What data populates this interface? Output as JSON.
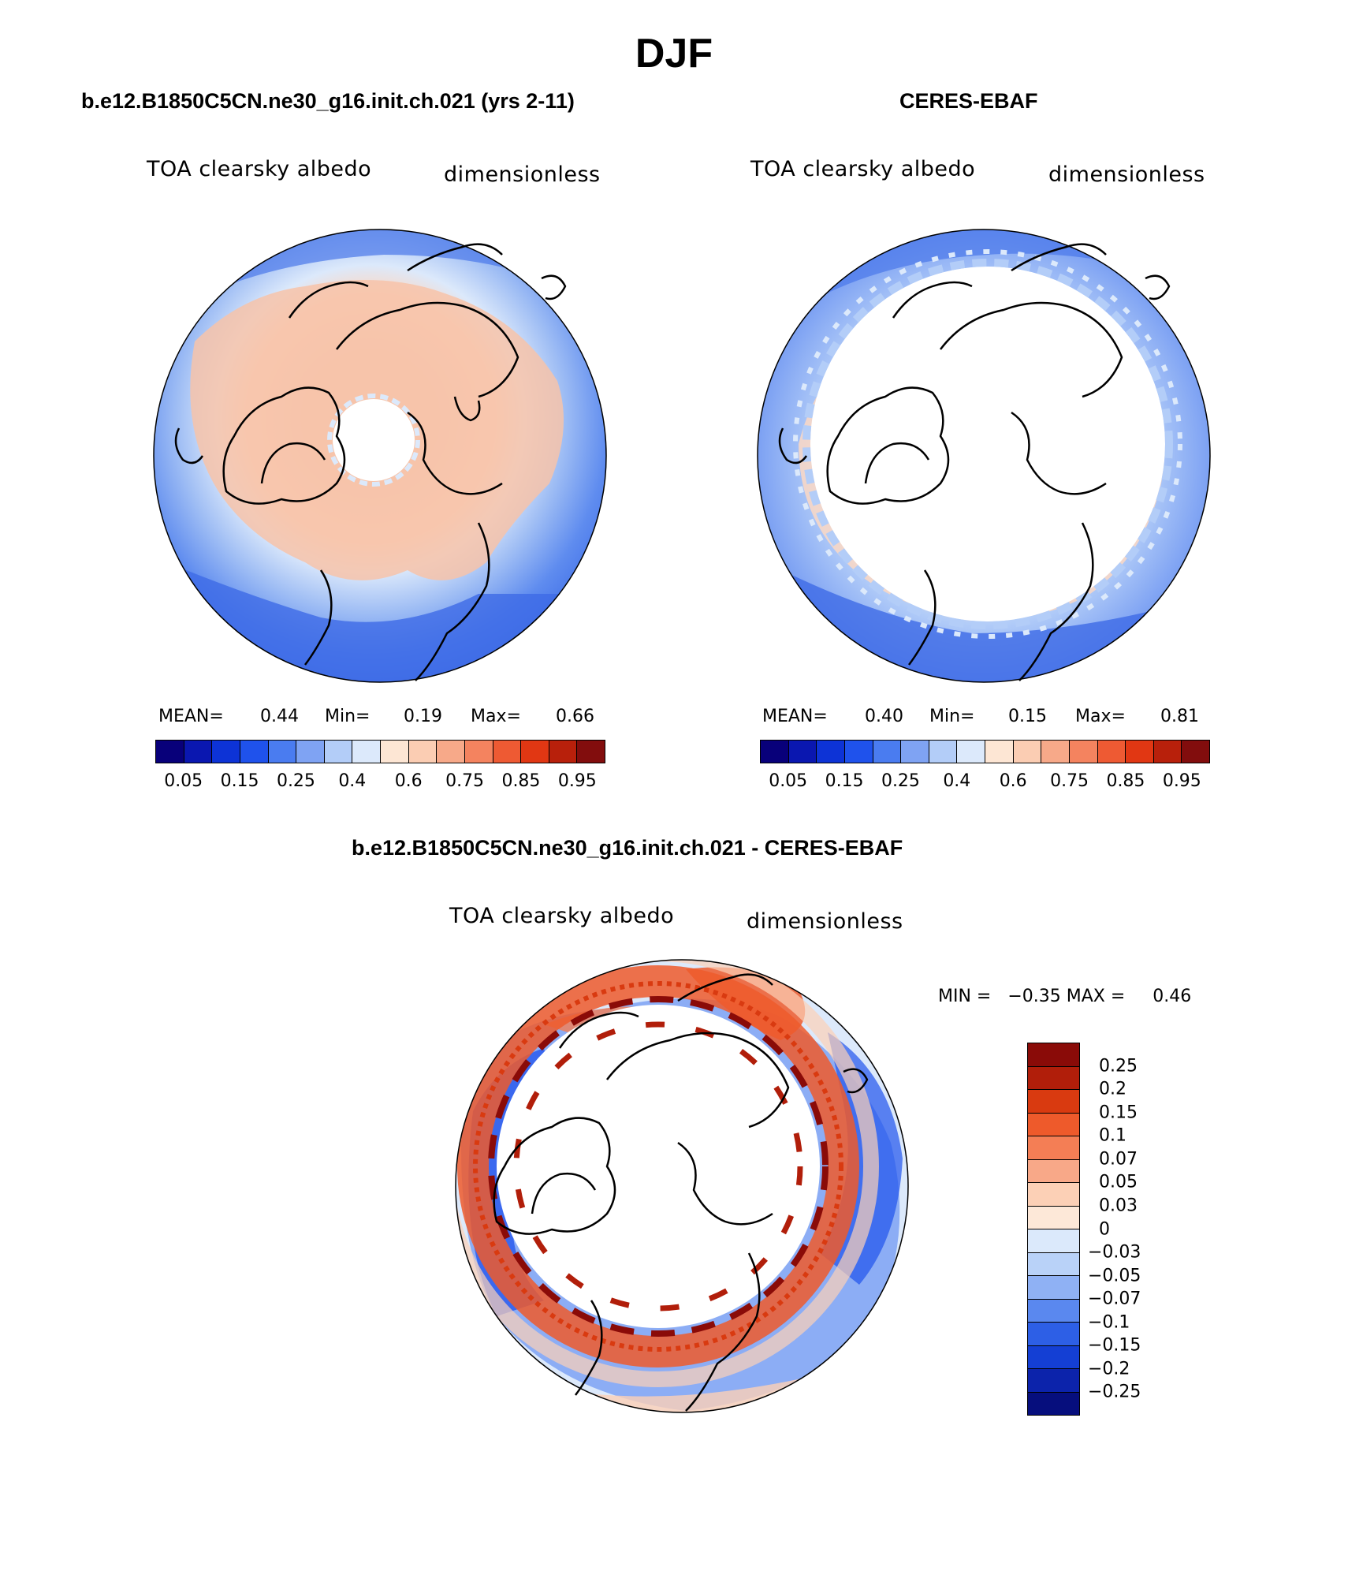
{
  "title": "DJF",
  "panels": {
    "model": {
      "title": "b.e12.B1850C5CN.ne30_g16.init.ch.021 (yrs 2-11)",
      "variable": "TOA clearsky albedo",
      "units": "dimensionless",
      "mean_label": "MEAN=",
      "mean": "0.44",
      "min_label": "Min=",
      "min": "0.19",
      "max_label": "Max=",
      "max": "0.66"
    },
    "obs": {
      "title": "CERES-EBAF",
      "variable": "TOA clearsky albedo",
      "units": "dimensionless",
      "mean_label": "MEAN=",
      "mean": "0.40",
      "min_label": "Min=",
      "min": "0.15",
      "max_label": "Max=",
      "max": "0.81"
    },
    "diff": {
      "title": "b.e12.B1850C5CN.ne30_g16.init.ch.021 - CERES-EBAF",
      "variable": "TOA clearsky albedo",
      "units": "dimensionless",
      "minmax_text": "MIN =   −0.35 MAX =     0.46"
    }
  },
  "colorbar_abs": {
    "colors": [
      "#08007a",
      "#0a17b0",
      "#0d33d6",
      "#1f52ec",
      "#4a7cf0",
      "#7fa3f3",
      "#b3cdf8",
      "#dce9fb",
      "#fde6d4",
      "#fbcdb3",
      "#f7a989",
      "#f4835f",
      "#ee5a33",
      "#e13713",
      "#b8200b",
      "#820d0d"
    ],
    "ticks": [
      "0.05",
      "0.15",
      "0.25",
      "0.4",
      "0.6",
      "0.75",
      "0.85",
      "0.95"
    ]
  },
  "colorbar_diff": {
    "colors": [
      "#8a0b08",
      "#b11e0a",
      "#d93a10",
      "#ee5a2b",
      "#f47e55",
      "#f8a888",
      "#fcd0b6",
      "#fde8d8",
      "#dbe9fb",
      "#b9d2f8",
      "#8fb1f4",
      "#5a88ef",
      "#2d5fe6",
      "#143fd4",
      "#0c23ab",
      "#060e7d"
    ],
    "ticks": [
      "0.25",
      "0.2",
      "0.15",
      "0.1",
      "0.07",
      "0.05",
      "0.03",
      "0",
      "−0.03",
      "−0.05",
      "−0.07",
      "−0.1",
      "−0.15",
      "−0.2",
      "−0.25"
    ]
  }
}
